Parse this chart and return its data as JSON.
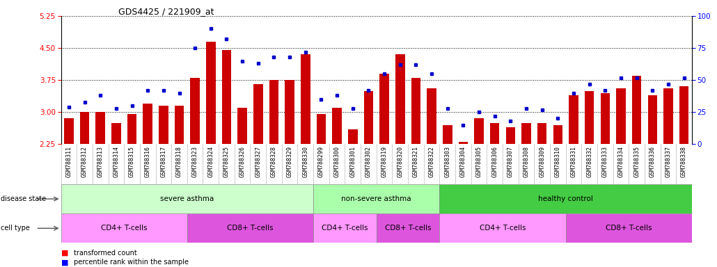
{
  "title": "GDS4425 / 221909_at",
  "samples": [
    "GSM788311",
    "GSM788312",
    "GSM788313",
    "GSM788314",
    "GSM788315",
    "GSM788316",
    "GSM788317",
    "GSM788318",
    "GSM788323",
    "GSM788324",
    "GSM788325",
    "GSM788326",
    "GSM788327",
    "GSM788328",
    "GSM788329",
    "GSM788330",
    "GSM788299",
    "GSM788300",
    "GSM788301",
    "GSM788302",
    "GSM788319",
    "GSM788320",
    "GSM788321",
    "GSM788322",
    "GSM788303",
    "GSM788304",
    "GSM788305",
    "GSM788306",
    "GSM788307",
    "GSM788308",
    "GSM788309",
    "GSM788310",
    "GSM788331",
    "GSM788332",
    "GSM788333",
    "GSM788334",
    "GSM788335",
    "GSM788336",
    "GSM788337",
    "GSM788338"
  ],
  "transformed_count": [
    2.85,
    3.0,
    3.0,
    2.75,
    2.95,
    3.2,
    3.15,
    3.15,
    3.8,
    4.65,
    4.45,
    3.1,
    3.65,
    3.75,
    3.75,
    4.35,
    2.95,
    3.1,
    2.6,
    3.5,
    3.9,
    4.35,
    3.8,
    3.55,
    2.7,
    2.3,
    2.85,
    2.75,
    2.65,
    2.75,
    2.75,
    2.7,
    3.4,
    3.5,
    3.45,
    3.55,
    3.85,
    3.4,
    3.55,
    3.6
  ],
  "percentile_rank": [
    29,
    33,
    38,
    28,
    30,
    42,
    42,
    40,
    75,
    90,
    82,
    65,
    63,
    68,
    68,
    72,
    35,
    38,
    28,
    42,
    55,
    62,
    62,
    55,
    28,
    15,
    25,
    22,
    18,
    28,
    27,
    20,
    40,
    47,
    42,
    52,
    52,
    42,
    47,
    52
  ],
  "disease_state_groups": [
    {
      "label": "severe asthma",
      "start": 0,
      "end": 16,
      "color": "#ccffcc"
    },
    {
      "label": "non-severe asthma",
      "start": 16,
      "end": 24,
      "color": "#aaffaa"
    },
    {
      "label": "healthy control",
      "start": 24,
      "end": 40,
      "color": "#44cc44"
    }
  ],
  "cell_type_groups": [
    {
      "label": "CD4+ T-cells",
      "start": 0,
      "end": 8,
      "color": "#ff99ff"
    },
    {
      "label": "CD8+ T-cells",
      "start": 8,
      "end": 16,
      "color": "#dd55dd"
    },
    {
      "label": "CD4+ T-cells",
      "start": 16,
      "end": 20,
      "color": "#ff99ff"
    },
    {
      "label": "CD8+ T-cells",
      "start": 20,
      "end": 24,
      "color": "#dd55dd"
    },
    {
      "label": "CD4+ T-cells",
      "start": 24,
      "end": 32,
      "color": "#ff99ff"
    },
    {
      "label": "CD8+ T-cells",
      "start": 32,
      "end": 40,
      "color": "#dd55dd"
    }
  ],
  "ylim_left": [
    2.25,
    5.25
  ],
  "yticks_left": [
    2.25,
    3.0,
    3.75,
    4.5,
    5.25
  ],
  "ylim_right": [
    0,
    100
  ],
  "yticks_right": [
    0,
    25,
    50,
    75,
    100
  ],
  "bar_color": "#cc0000",
  "dot_color": "#0000cc",
  "grid_color": "#000000",
  "tick_label_bg": "#d8d8d8"
}
